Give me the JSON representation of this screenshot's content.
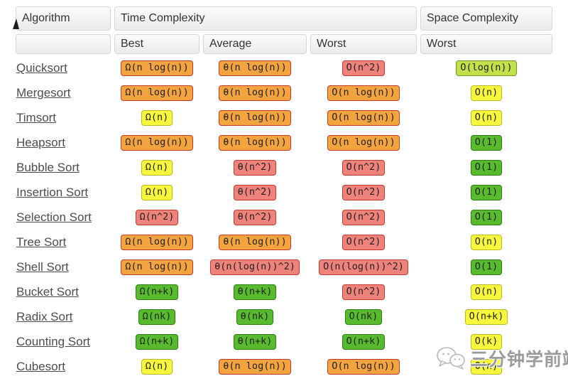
{
  "chart_data": {
    "type": "table",
    "headers": {
      "algorithm": "Algorithm",
      "time_complexity": "Time Complexity",
      "space_complexity": "Space Complexity"
    },
    "subheaders": {
      "best": "Best",
      "average": "Average",
      "worst": "Worst",
      "space_worst": "Worst"
    },
    "rows": [
      {
        "algorithm": "Quicksort",
        "best": {
          "text": "Ω(n log(n))",
          "level": "orange"
        },
        "average": {
          "text": "θ(n log(n))",
          "level": "orange"
        },
        "worst": {
          "text": "O(n^2)",
          "level": "red"
        },
        "space": {
          "text": "O(log(n))",
          "level": "yellowgreen"
        }
      },
      {
        "algorithm": "Mergesort",
        "best": {
          "text": "Ω(n log(n))",
          "level": "orange"
        },
        "average": {
          "text": "θ(n log(n))",
          "level": "orange"
        },
        "worst": {
          "text": "O(n log(n))",
          "level": "orange"
        },
        "space": {
          "text": "O(n)",
          "level": "yellow"
        }
      },
      {
        "algorithm": "Timsort",
        "best": {
          "text": "Ω(n)",
          "level": "yellow"
        },
        "average": {
          "text": "θ(n log(n))",
          "level": "orange"
        },
        "worst": {
          "text": "O(n log(n))",
          "level": "orange"
        },
        "space": {
          "text": "O(n)",
          "level": "yellow"
        }
      },
      {
        "algorithm": "Heapsort",
        "best": {
          "text": "Ω(n log(n))",
          "level": "orange"
        },
        "average": {
          "text": "θ(n log(n))",
          "level": "orange"
        },
        "worst": {
          "text": "O(n log(n))",
          "level": "orange"
        },
        "space": {
          "text": "O(1)",
          "level": "green"
        }
      },
      {
        "algorithm": "Bubble Sort",
        "best": {
          "text": "Ω(n)",
          "level": "yellow"
        },
        "average": {
          "text": "θ(n^2)",
          "level": "red"
        },
        "worst": {
          "text": "O(n^2)",
          "level": "red"
        },
        "space": {
          "text": "O(1)",
          "level": "green"
        }
      },
      {
        "algorithm": "Insertion Sort",
        "best": {
          "text": "Ω(n)",
          "level": "yellow"
        },
        "average": {
          "text": "θ(n^2)",
          "level": "red"
        },
        "worst": {
          "text": "O(n^2)",
          "level": "red"
        },
        "space": {
          "text": "O(1)",
          "level": "green"
        }
      },
      {
        "algorithm": "Selection Sort",
        "best": {
          "text": "Ω(n^2)",
          "level": "red"
        },
        "average": {
          "text": "θ(n^2)",
          "level": "red"
        },
        "worst": {
          "text": "O(n^2)",
          "level": "red"
        },
        "space": {
          "text": "O(1)",
          "level": "green"
        }
      },
      {
        "algorithm": "Tree Sort",
        "best": {
          "text": "Ω(n log(n))",
          "level": "orange"
        },
        "average": {
          "text": "θ(n log(n))",
          "level": "orange"
        },
        "worst": {
          "text": "O(n^2)",
          "level": "red"
        },
        "space": {
          "text": "O(n)",
          "level": "yellow"
        }
      },
      {
        "algorithm": "Shell Sort",
        "best": {
          "text": "Ω(n log(n))",
          "level": "orange"
        },
        "average": {
          "text": "θ(n(log(n))^2)",
          "level": "red"
        },
        "worst": {
          "text": "O(n(log(n))^2)",
          "level": "red"
        },
        "space": {
          "text": "O(1)",
          "level": "green"
        }
      },
      {
        "algorithm": "Bucket Sort",
        "best": {
          "text": "Ω(n+k)",
          "level": "green"
        },
        "average": {
          "text": "θ(n+k)",
          "level": "green"
        },
        "worst": {
          "text": "O(n^2)",
          "level": "red"
        },
        "space": {
          "text": "O(n)",
          "level": "yellow"
        }
      },
      {
        "algorithm": "Radix Sort",
        "best": {
          "text": "Ω(nk)",
          "level": "green"
        },
        "average": {
          "text": "θ(nk)",
          "level": "green"
        },
        "worst": {
          "text": "O(nk)",
          "level": "green"
        },
        "space": {
          "text": "O(n+k)",
          "level": "yellow"
        }
      },
      {
        "algorithm": "Counting Sort",
        "best": {
          "text": "Ω(n+k)",
          "level": "green"
        },
        "average": {
          "text": "θ(n+k)",
          "level": "green"
        },
        "worst": {
          "text": "O(n+k)",
          "level": "green"
        },
        "space": {
          "text": "O(k)",
          "level": "yellow"
        }
      },
      {
        "algorithm": "Cubesort",
        "best": {
          "text": "Ω(n)",
          "level": "yellow"
        },
        "average": {
          "text": "θ(n log(n))",
          "level": "orange"
        },
        "worst": {
          "text": "O(n log(n))",
          "level": "orange"
        },
        "space": {
          "text": "O(n)",
          "level": "yellow"
        }
      }
    ]
  },
  "badge_colors": {
    "green": {
      "bg": "#57bb2d",
      "border": "#2e7d12"
    },
    "yellowgreen": {
      "bg": "#c4e04b",
      "border": "#6d9a1e"
    },
    "yellow": {
      "bg": "#f7f73c",
      "border": "#b9b928"
    },
    "orange": {
      "bg": "#f4a43e",
      "border": "#c2392b"
    },
    "red": {
      "bg": "#ef837b",
      "border": "#c2392b"
    }
  },
  "watermark": {
    "text": "三分钟学前端",
    "icon": "chat-bubbles-icon",
    "color": "#9b9b9b"
  }
}
